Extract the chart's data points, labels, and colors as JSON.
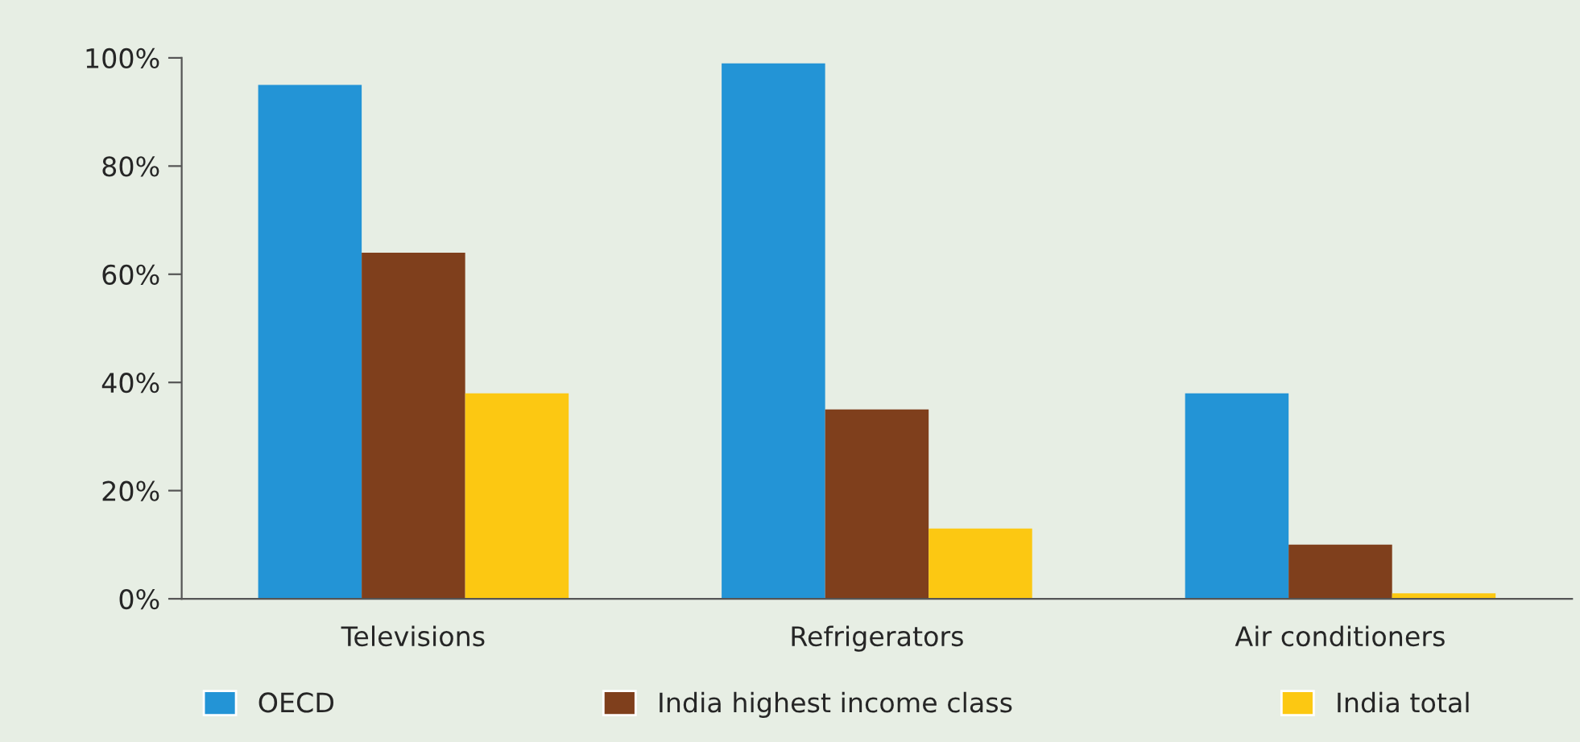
{
  "chart_data": {
    "type": "bar",
    "categories": [
      "Televisions",
      "Refrigerators",
      "Air conditioners"
    ],
    "series": [
      {
        "name": "OECD",
        "color": "#2394d6",
        "values": [
          95,
          99,
          38
        ]
      },
      {
        "name": "India highest income class",
        "color": "#7f3f1c",
        "values": [
          64,
          35,
          10
        ]
      },
      {
        "name": "India total",
        "color": "#fcc812",
        "values": [
          38,
          13,
          1
        ]
      }
    ],
    "ylim": [
      0,
      100
    ],
    "yticks": [
      {
        "value": 0,
        "label": "0%"
      },
      {
        "value": 20,
        "label": "20%"
      },
      {
        "value": 40,
        "label": "40%"
      },
      {
        "value": 60,
        "label": "60%"
      },
      {
        "value": 80,
        "label": "80%"
      },
      {
        "value": 100,
        "label": "100%"
      }
    ],
    "grid": false,
    "legend": "bottom"
  }
}
